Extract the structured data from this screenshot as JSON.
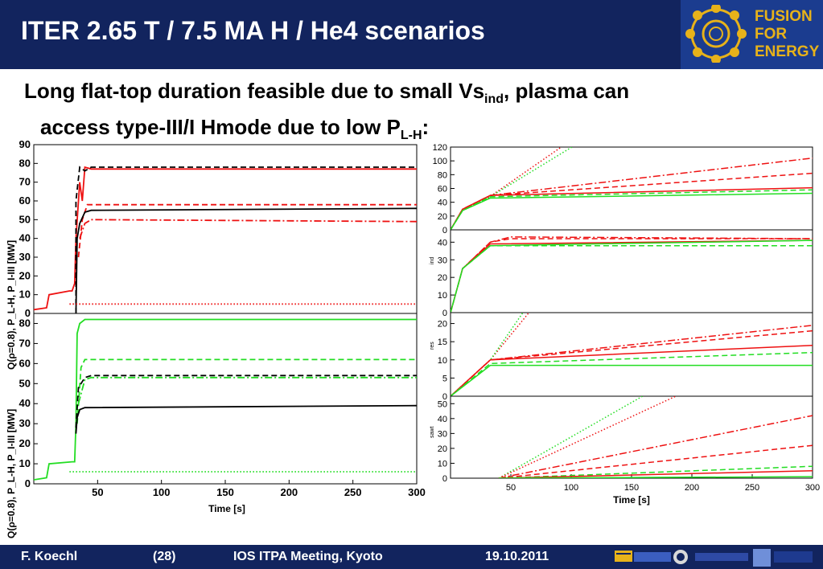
{
  "header": {
    "title": "ITER 2.65 T / 7.5 MA H / He4 scenarios"
  },
  "logo": {
    "line1": "FUSION",
    "line2": "FOR",
    "line3": "ENERGY"
  },
  "subtitle": {
    "part1": "Long flat-top duration feasible due to small Vs",
    "sub1": "ind",
    "part2": ", plasma can",
    "part3": "access type-III/I Hmode due to low P",
    "sub2": "L-H",
    "part4": ":"
  },
  "footer": {
    "author": "F. Koechl",
    "page": "(28)",
    "meeting": "IOS ITPA Meeting, Kyoto",
    "date": "19.10.2011"
  },
  "colors": {
    "header_bg": "#12245e",
    "accent": "#e7b21a",
    "red": "#ee1111",
    "green": "#22dd22",
    "black": "#000000"
  },
  "chart_data": [
    {
      "type": "line",
      "panel": "left-top",
      "ylabel": "Q(ρ=0.8), P_L-H, P_I-III [MW]",
      "xlim": [
        0,
        300
      ],
      "ylim": [
        0,
        90
      ],
      "yticks": [
        0,
        10,
        20,
        30,
        40,
        50,
        60,
        70,
        80,
        90
      ],
      "series": [
        {
          "color": "red",
          "style": "solid",
          "x": [
            0,
            10,
            12,
            28,
            30,
            32,
            33,
            36,
            38,
            40,
            45,
            300
          ],
          "y": [
            2,
            3,
            10,
            12,
            12,
            16,
            40,
            70,
            60,
            78,
            77,
            77
          ]
        },
        {
          "color": "black",
          "style": "dashed",
          "x": [
            33,
            33,
            36,
            40,
            45,
            300
          ],
          "y": [
            0,
            60,
            78,
            76,
            78,
            78
          ]
        },
        {
          "color": "red",
          "style": "dashed",
          "x": [
            35,
            38,
            42,
            50,
            300
          ],
          "y": [
            30,
            50,
            58,
            58,
            58
          ]
        },
        {
          "color": "black",
          "style": "solid",
          "x": [
            33,
            34,
            36,
            40,
            45,
            300
          ],
          "y": [
            0,
            40,
            48,
            54,
            55,
            56
          ]
        },
        {
          "color": "red",
          "style": "dashdot",
          "x": [
            36,
            40,
            45,
            300
          ],
          "y": [
            40,
            48,
            50,
            49
          ]
        },
        {
          "color": "red",
          "style": "dotted",
          "x": [
            28,
            300
          ],
          "y": [
            5,
            5
          ]
        }
      ]
    },
    {
      "type": "line",
      "panel": "left-bottom",
      "ylabel": "Q(ρ=0.8), P_L-H, P_I-III [MW]",
      "xlabel": "Time [s]",
      "xlim": [
        0,
        300
      ],
      "ylim": [
        0,
        85
      ],
      "xticks": [
        50,
        100,
        150,
        200,
        250,
        300
      ],
      "yticks": [
        0,
        10,
        20,
        30,
        40,
        50,
        60,
        70,
        80
      ],
      "series": [
        {
          "color": "green",
          "style": "solid",
          "x": [
            0,
            10,
            12,
            30,
            32,
            33,
            34,
            36,
            40,
            300
          ],
          "y": [
            2,
            3,
            10,
            11,
            11,
            30,
            75,
            80,
            82,
            82
          ]
        },
        {
          "color": "green",
          "style": "dashed",
          "x": [
            34,
            37,
            40,
            45,
            300
          ],
          "y": [
            30,
            58,
            62,
            62,
            62
          ]
        },
        {
          "color": "black",
          "style": "dashed",
          "x": [
            33,
            35,
            40,
            45,
            300
          ],
          "y": [
            28,
            48,
            53,
            54,
            54
          ]
        },
        {
          "color": "green",
          "style": "dashdot",
          "x": [
            35,
            40,
            45,
            300
          ],
          "y": [
            40,
            52,
            53,
            53
          ]
        },
        {
          "color": "black",
          "style": "solid",
          "x": [
            33,
            34,
            36,
            40,
            300
          ],
          "y": [
            25,
            33,
            37,
            38,
            39
          ]
        },
        {
          "color": "green",
          "style": "dotted",
          "x": [
            28,
            300
          ],
          "y": [
            6,
            6
          ]
        }
      ]
    },
    {
      "type": "line",
      "panel": "right-1",
      "xlim": [
        0,
        300
      ],
      "ylim": [
        0,
        120
      ],
      "yticks": [
        0,
        20,
        40,
        60,
        80,
        100,
        120
      ],
      "series": [
        {
          "color": "red",
          "style": "dotted",
          "x": [
            0,
            10,
            30,
            100
          ],
          "y": [
            0,
            30,
            45,
            130
          ]
        },
        {
          "color": "green",
          "style": "dotted",
          "x": [
            0,
            10,
            30,
            110
          ],
          "y": [
            0,
            28,
            45,
            130
          ]
        },
        {
          "color": "red",
          "style": "dashdot",
          "x": [
            0,
            10,
            33,
            300
          ],
          "y": [
            0,
            30,
            50,
            104
          ]
        },
        {
          "color": "red",
          "style": "dashed",
          "x": [
            0,
            10,
            33,
            300
          ],
          "y": [
            0,
            30,
            50,
            82
          ]
        },
        {
          "color": "red",
          "style": "solid",
          "x": [
            0,
            10,
            33,
            300
          ],
          "y": [
            0,
            30,
            50,
            61
          ]
        },
        {
          "color": "green",
          "style": "dashed",
          "x": [
            0,
            10,
            33,
            300
          ],
          "y": [
            0,
            28,
            48,
            58
          ]
        },
        {
          "color": "green",
          "style": "solid",
          "x": [
            0,
            10,
            33,
            300
          ],
          "y": [
            0,
            28,
            46,
            53
          ]
        }
      ]
    },
    {
      "type": "line",
      "panel": "right-2",
      "ylabel": "ind",
      "xlim": [
        0,
        300
      ],
      "ylim": [
        0,
        47
      ],
      "yticks": [
        0,
        10,
        20,
        30,
        40
      ],
      "series": [
        {
          "color": "red",
          "style": "dashdot",
          "x": [
            0,
            10,
            33,
            50,
            300
          ],
          "y": [
            0,
            25,
            40,
            43,
            42
          ]
        },
        {
          "color": "red",
          "style": "dashed",
          "x": [
            0,
            10,
            33,
            50,
            300
          ],
          "y": [
            0,
            25,
            40,
            42,
            42
          ]
        },
        {
          "color": "red",
          "style": "solid",
          "x": [
            0,
            10,
            33,
            300
          ],
          "y": [
            0,
            25,
            39,
            41
          ]
        },
        {
          "color": "green",
          "style": "solid",
          "x": [
            0,
            10,
            33,
            300
          ],
          "y": [
            0,
            25,
            38,
            41
          ]
        },
        {
          "color": "green",
          "style": "dashed",
          "x": [
            0,
            10,
            33,
            300
          ],
          "y": [
            0,
            25,
            38,
            38
          ]
        }
      ]
    },
    {
      "type": "line",
      "panel": "right-3",
      "ylabel": "res",
      "xlim": [
        0,
        300
      ],
      "ylim": [
        0,
        23
      ],
      "yticks": [
        0,
        5,
        10,
        15,
        20
      ],
      "series": [
        {
          "color": "red",
          "style": "dotted",
          "x": [
            0,
            33,
            65
          ],
          "y": [
            0,
            10,
            23
          ]
        },
        {
          "color": "green",
          "style": "dotted",
          "x": [
            0,
            33,
            60
          ],
          "y": [
            0,
            10,
            23
          ]
        },
        {
          "color": "red",
          "style": "dashdot",
          "x": [
            0,
            33,
            300
          ],
          "y": [
            0,
            10,
            19.5
          ]
        },
        {
          "color": "red",
          "style": "dashed",
          "x": [
            0,
            33,
            300
          ],
          "y": [
            0,
            10,
            18
          ]
        },
        {
          "color": "red",
          "style": "solid",
          "x": [
            0,
            33,
            300
          ],
          "y": [
            0,
            10,
            14
          ]
        },
        {
          "color": "green",
          "style": "dashed",
          "x": [
            0,
            33,
            300
          ],
          "y": [
            0,
            9,
            12
          ]
        },
        {
          "color": "green",
          "style": "solid",
          "x": [
            0,
            33,
            300
          ],
          "y": [
            0,
            8.5,
            8.5
          ]
        }
      ]
    },
    {
      "type": "line",
      "panel": "right-4",
      "ylabel": "sawt",
      "xlabel": "Time [s]",
      "xlim": [
        0,
        300
      ],
      "ylim": [
        0,
        55
      ],
      "xticks": [
        50,
        100,
        150,
        200,
        250,
        300
      ],
      "yticks": [
        0,
        10,
        20,
        30,
        40,
        50
      ],
      "series": [
        {
          "color": "green",
          "style": "dotted",
          "x": [
            40,
            170
          ],
          "y": [
            0,
            60
          ]
        },
        {
          "color": "red",
          "style": "dotted",
          "x": [
            40,
            200
          ],
          "y": [
            0,
            60
          ]
        },
        {
          "color": "red",
          "style": "dashdot",
          "x": [
            40,
            300
          ],
          "y": [
            0,
            42
          ]
        },
        {
          "color": "red",
          "style": "dashed",
          "x": [
            40,
            300
          ],
          "y": [
            0,
            22
          ]
        },
        {
          "color": "green",
          "style": "dashed",
          "x": [
            40,
            300
          ],
          "y": [
            0,
            8
          ]
        },
        {
          "color": "red",
          "style": "solid",
          "x": [
            40,
            300
          ],
          "y": [
            0,
            5
          ]
        },
        {
          "color": "green",
          "style": "solid",
          "x": [
            40,
            300
          ],
          "y": [
            0,
            1
          ]
        }
      ]
    }
  ]
}
